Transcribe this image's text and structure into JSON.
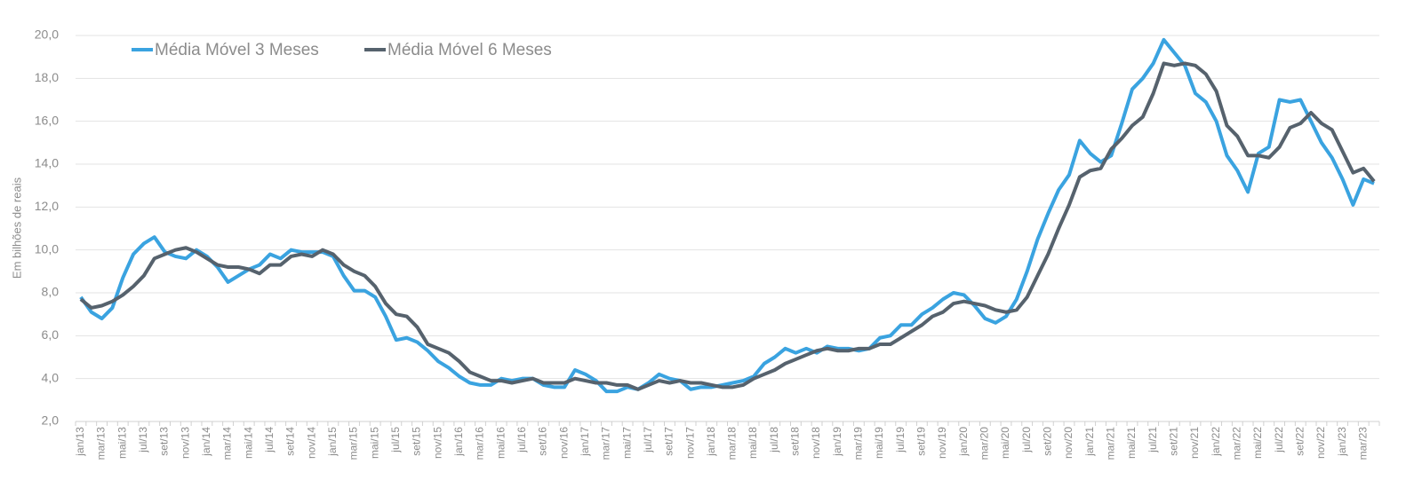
{
  "chart_data": {
    "type": "line",
    "y_label": "Em bilhões de reais",
    "categories": [
      "jan/13",
      null,
      "mar/13",
      null,
      "mai/13",
      null,
      "jul/13",
      null,
      "set/13",
      null,
      "nov/13",
      null,
      "jan/14",
      null,
      "mar/14",
      null,
      "mai/14",
      null,
      "jul/14",
      null,
      "set/14",
      null,
      "nov/14",
      null,
      "jan/15",
      null,
      "mar/15",
      null,
      "mai/15",
      null,
      "jul/15",
      null,
      "set/15",
      null,
      "nov/15",
      null,
      "jan/16",
      null,
      "mar/16",
      null,
      "mai/16",
      null,
      "jul/16",
      null,
      "set/16",
      null,
      "nov/16",
      null,
      "jan/17",
      null,
      "mar/17",
      null,
      "mai/17",
      null,
      "jul/17",
      null,
      "set/17",
      null,
      "nov/17",
      null,
      "jan/18",
      null,
      "mar/18",
      null,
      "mai/18",
      null,
      "jul/18",
      null,
      "set/18",
      null,
      "nov/18",
      null,
      "jan/19",
      null,
      "mar/19",
      null,
      "mai/19",
      null,
      "jul/19",
      null,
      "set/19",
      null,
      "nov/19",
      null,
      "jan/20",
      null,
      "mar/20",
      null,
      "mai/20",
      null,
      "jul/20",
      null,
      "set/20",
      null,
      "nov/20",
      null,
      "jan/21",
      null,
      "mar/21",
      null,
      "mai/21",
      null,
      "jul/21",
      null,
      "set/21",
      null,
      "nov/21",
      null,
      "jan/22",
      null,
      "mar/22",
      null,
      "mai/22",
      null,
      "jul/22",
      null,
      "set/22",
      null,
      "nov/22",
      null,
      "jan/23",
      null,
      "mar/23",
      null
    ],
    "series": [
      {
        "name": "Média Móvel 3 Meses",
        "color": "#3aa3e0",
        "values": [
          7.8,
          7.1,
          6.8,
          7.3,
          8.7,
          9.8,
          10.3,
          10.6,
          9.9,
          9.7,
          9.6,
          10.0,
          9.7,
          9.2,
          8.5,
          8.8,
          9.1,
          9.3,
          9.8,
          9.6,
          10.0,
          9.9,
          9.9,
          9.9,
          9.7,
          8.8,
          8.1,
          8.1,
          7.8,
          6.9,
          5.8,
          5.9,
          5.7,
          5.3,
          4.8,
          4.5,
          4.1,
          3.8,
          3.7,
          3.7,
          4.0,
          3.9,
          4.0,
          4.0,
          3.7,
          3.6,
          3.6,
          4.4,
          4.2,
          3.9,
          3.4,
          3.4,
          3.6,
          3.5,
          3.8,
          4.2,
          4.0,
          3.9,
          3.5,
          3.6,
          3.6,
          3.7,
          3.8,
          3.9,
          4.1,
          4.7,
          5.0,
          5.4,
          5.2,
          5.4,
          5.2,
          5.5,
          5.4,
          5.4,
          5.3,
          5.4,
          5.9,
          6.0,
          6.5,
          6.5,
          7.0,
          7.3,
          7.7,
          8.0,
          7.9,
          7.4,
          6.8,
          6.6,
          6.9,
          7.7,
          9.0,
          10.5,
          11.7,
          12.8,
          13.5,
          15.1,
          14.5,
          14.1,
          14.4,
          15.9,
          17.5,
          18.0,
          18.7,
          19.8,
          19.2,
          18.6,
          17.3,
          16.9,
          16.0,
          14.4,
          13.7,
          12.7,
          14.5,
          14.8,
          17.0,
          16.9,
          17.0,
          16.0,
          15.0,
          14.3,
          13.3,
          12.1,
          13.3,
          13.1
        ]
      },
      {
        "name": "Média Móvel 6 Meses",
        "color": "#56626d",
        "values": [
          7.7,
          7.3,
          7.4,
          7.6,
          7.9,
          8.3,
          8.8,
          9.6,
          9.8,
          10.0,
          10.1,
          9.9,
          9.6,
          9.3,
          9.2,
          9.2,
          9.1,
          8.9,
          9.3,
          9.3,
          9.7,
          9.8,
          9.7,
          10.0,
          9.8,
          9.3,
          9.0,
          8.8,
          8.3,
          7.5,
          7.0,
          6.9,
          6.4,
          5.6,
          5.4,
          5.2,
          4.8,
          4.3,
          4.1,
          3.9,
          3.9,
          3.8,
          3.9,
          4.0,
          3.8,
          3.8,
          3.8,
          4.0,
          3.9,
          3.8,
          3.8,
          3.7,
          3.7,
          3.5,
          3.7,
          3.9,
          3.8,
          3.9,
          3.8,
          3.8,
          3.7,
          3.6,
          3.6,
          3.7,
          4.0,
          4.2,
          4.4,
          4.7,
          4.9,
          5.1,
          5.3,
          5.4,
          5.3,
          5.3,
          5.4,
          5.4,
          5.6,
          5.6,
          5.9,
          6.2,
          6.5,
          6.9,
          7.1,
          7.5,
          7.6,
          7.5,
          7.4,
          7.2,
          7.1,
          7.2,
          7.8,
          8.8,
          9.8,
          11.0,
          12.1,
          13.4,
          13.7,
          13.8,
          14.7,
          15.2,
          15.8,
          16.2,
          17.3,
          18.7,
          18.6,
          18.7,
          18.6,
          18.2,
          17.4,
          15.8,
          15.3,
          14.4,
          14.4,
          14.3,
          14.8,
          15.7,
          15.9,
          16.4,
          15.9,
          15.6,
          14.6,
          13.6,
          13.8,
          13.2
        ]
      }
    ],
    "ylim": [
      2,
      20
    ],
    "yticks": [
      {
        "value": 2,
        "label": "2,0"
      },
      {
        "value": 4,
        "label": "4,0"
      },
      {
        "value": 6,
        "label": "6,0"
      },
      {
        "value": 8,
        "label": "8,0"
      },
      {
        "value": 10,
        "label": "10,0"
      },
      {
        "value": 12,
        "label": "12,0"
      },
      {
        "value": 14,
        "label": "14,0"
      },
      {
        "value": 16,
        "label": "16,0"
      },
      {
        "value": 18,
        "label": "18,0"
      },
      {
        "value": 20,
        "label": "20,0"
      }
    ],
    "grid": true,
    "legend": "top-left"
  }
}
